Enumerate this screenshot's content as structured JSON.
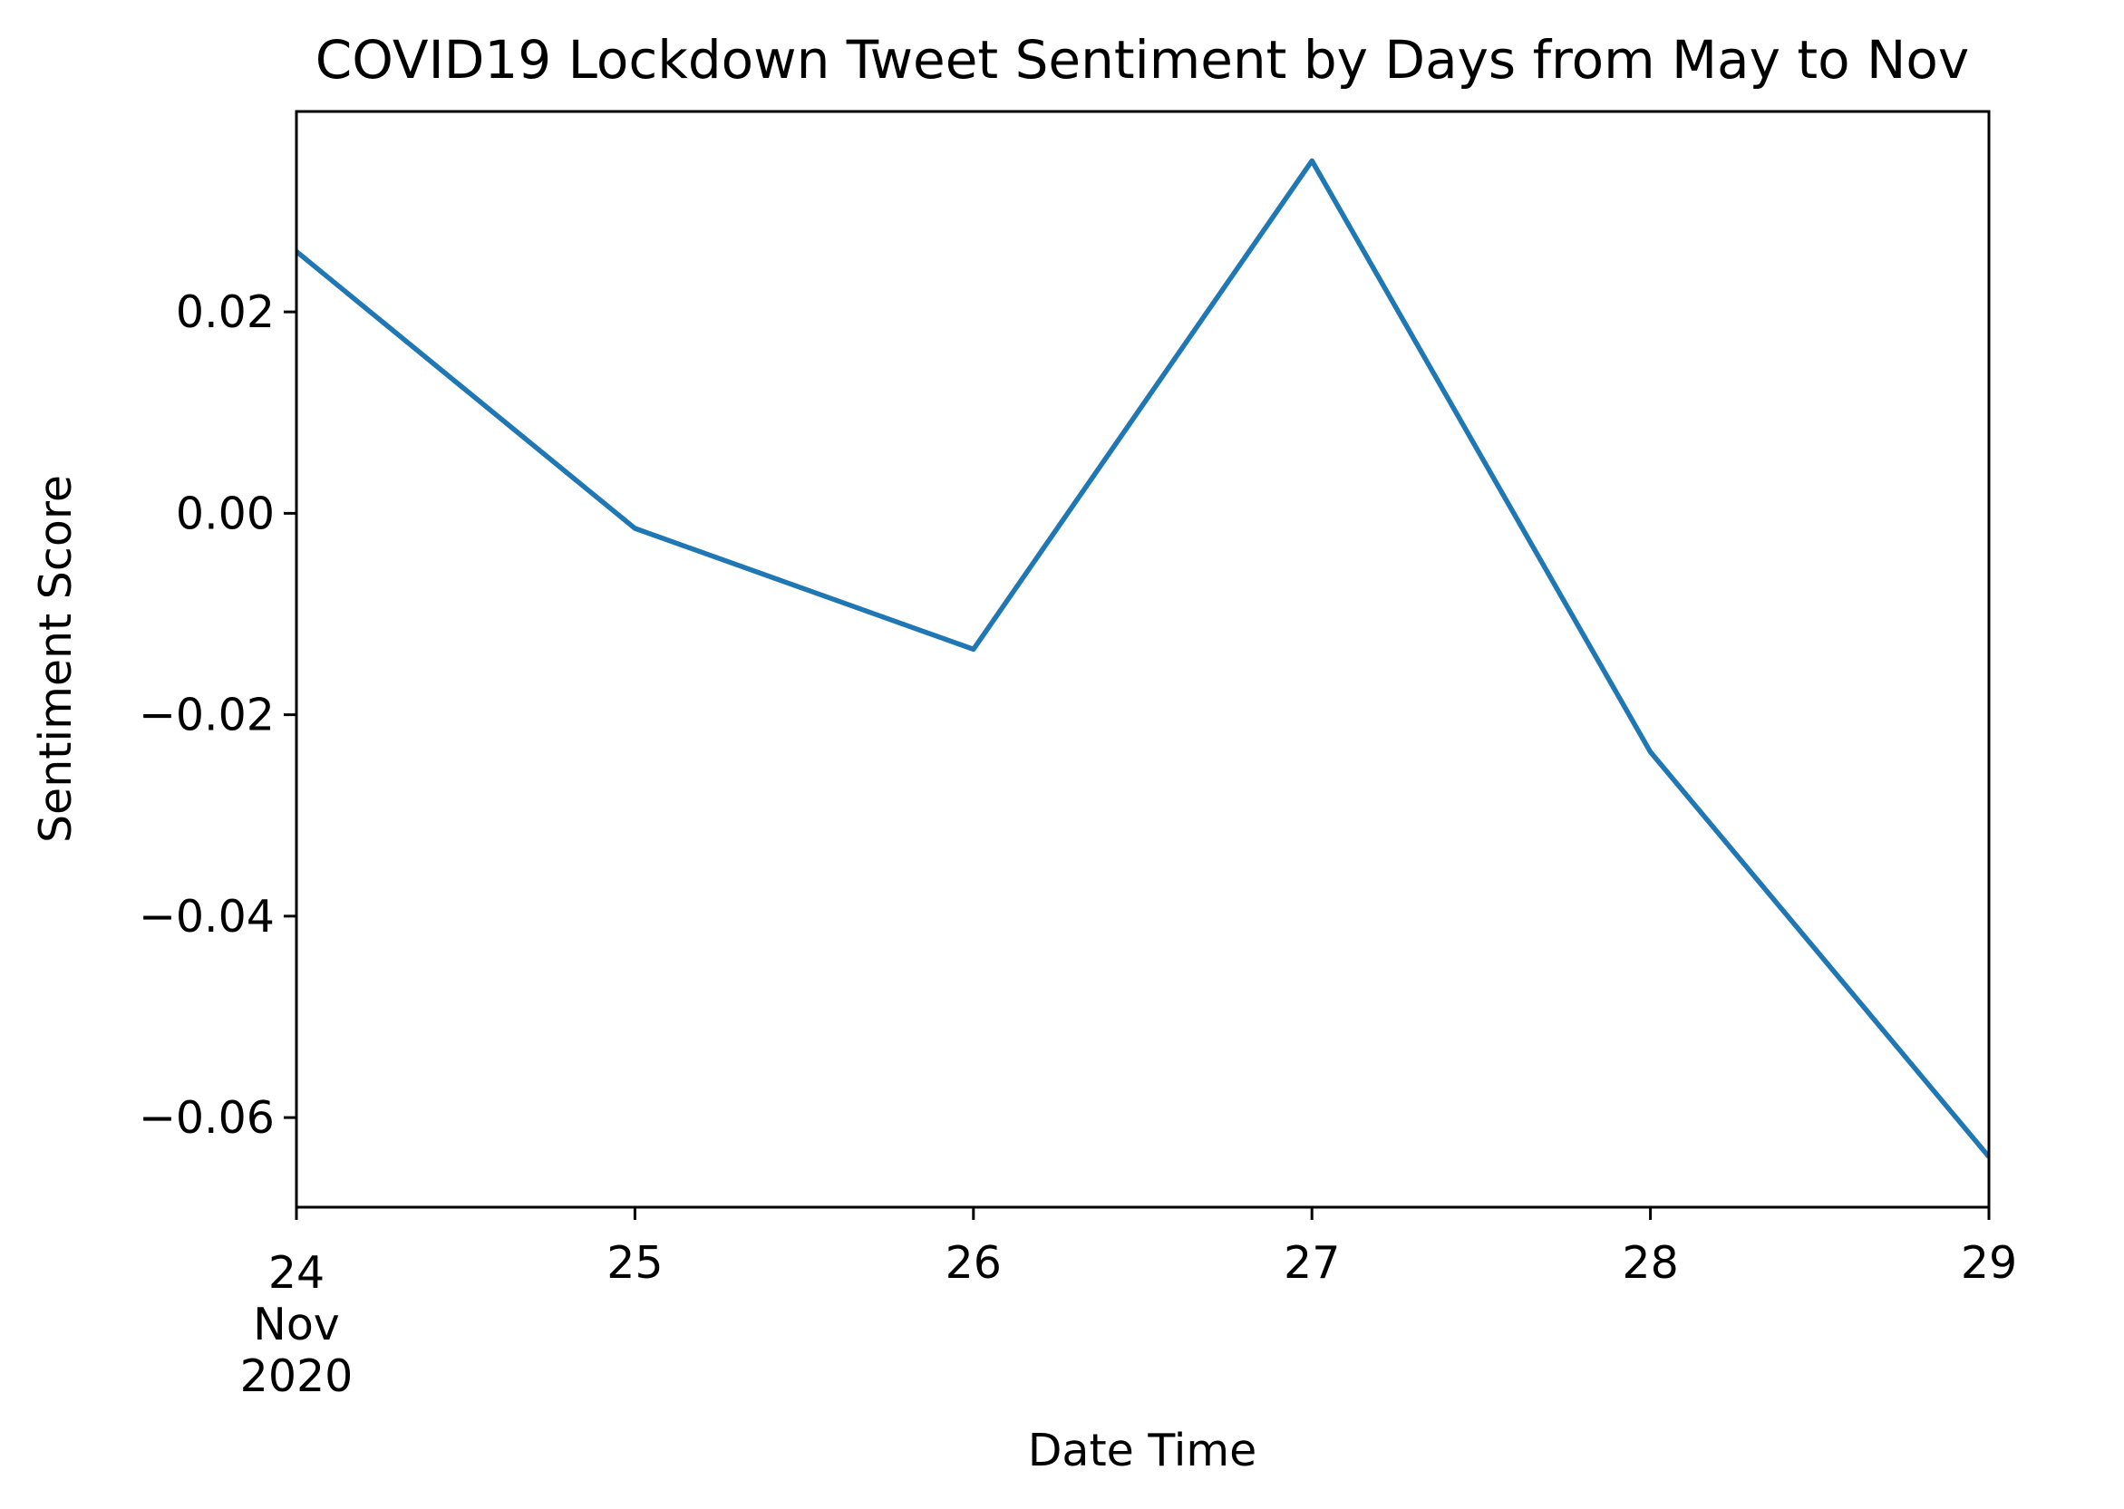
{
  "chart_data": {
    "type": "line",
    "title": "COVID19 Lockdown Tweet Sentiment by Days from May to Nov",
    "xlabel": "Date Time",
    "ylabel": "Sentiment Score",
    "x": [
      "2020-11-24",
      "2020-11-25",
      "2020-11-26",
      "2020-11-27",
      "2020-11-28",
      "2020-11-29"
    ],
    "series": [
      {
        "values": [
          0.026,
          -0.0015,
          -0.0135,
          0.035,
          -0.0237,
          -0.0639
        ],
        "color": "#1f77b4"
      }
    ],
    "x_ticks": [
      {
        "lines": [
          "24",
          "Nov",
          "2020"
        ]
      },
      {
        "lines": [
          "25"
        ]
      },
      {
        "lines": [
          "26"
        ]
      },
      {
        "lines": [
          "27"
        ]
      },
      {
        "lines": [
          "28"
        ]
      },
      {
        "lines": [
          "29"
        ]
      }
    ],
    "y_ticks": [
      {
        "value": 0.02,
        "label": "0.02"
      },
      {
        "value": 0.0,
        "label": "0.00"
      },
      {
        "value": -0.02,
        "label": "−0.02"
      },
      {
        "value": -0.04,
        "label": "−0.04"
      },
      {
        "value": -0.06,
        "label": "−0.06"
      }
    ],
    "xlim": [
      "2020-11-24",
      "2020-11-29"
    ],
    "ylim": [
      -0.0689,
      0.0399
    ],
    "grid": false,
    "legend": "none"
  }
}
